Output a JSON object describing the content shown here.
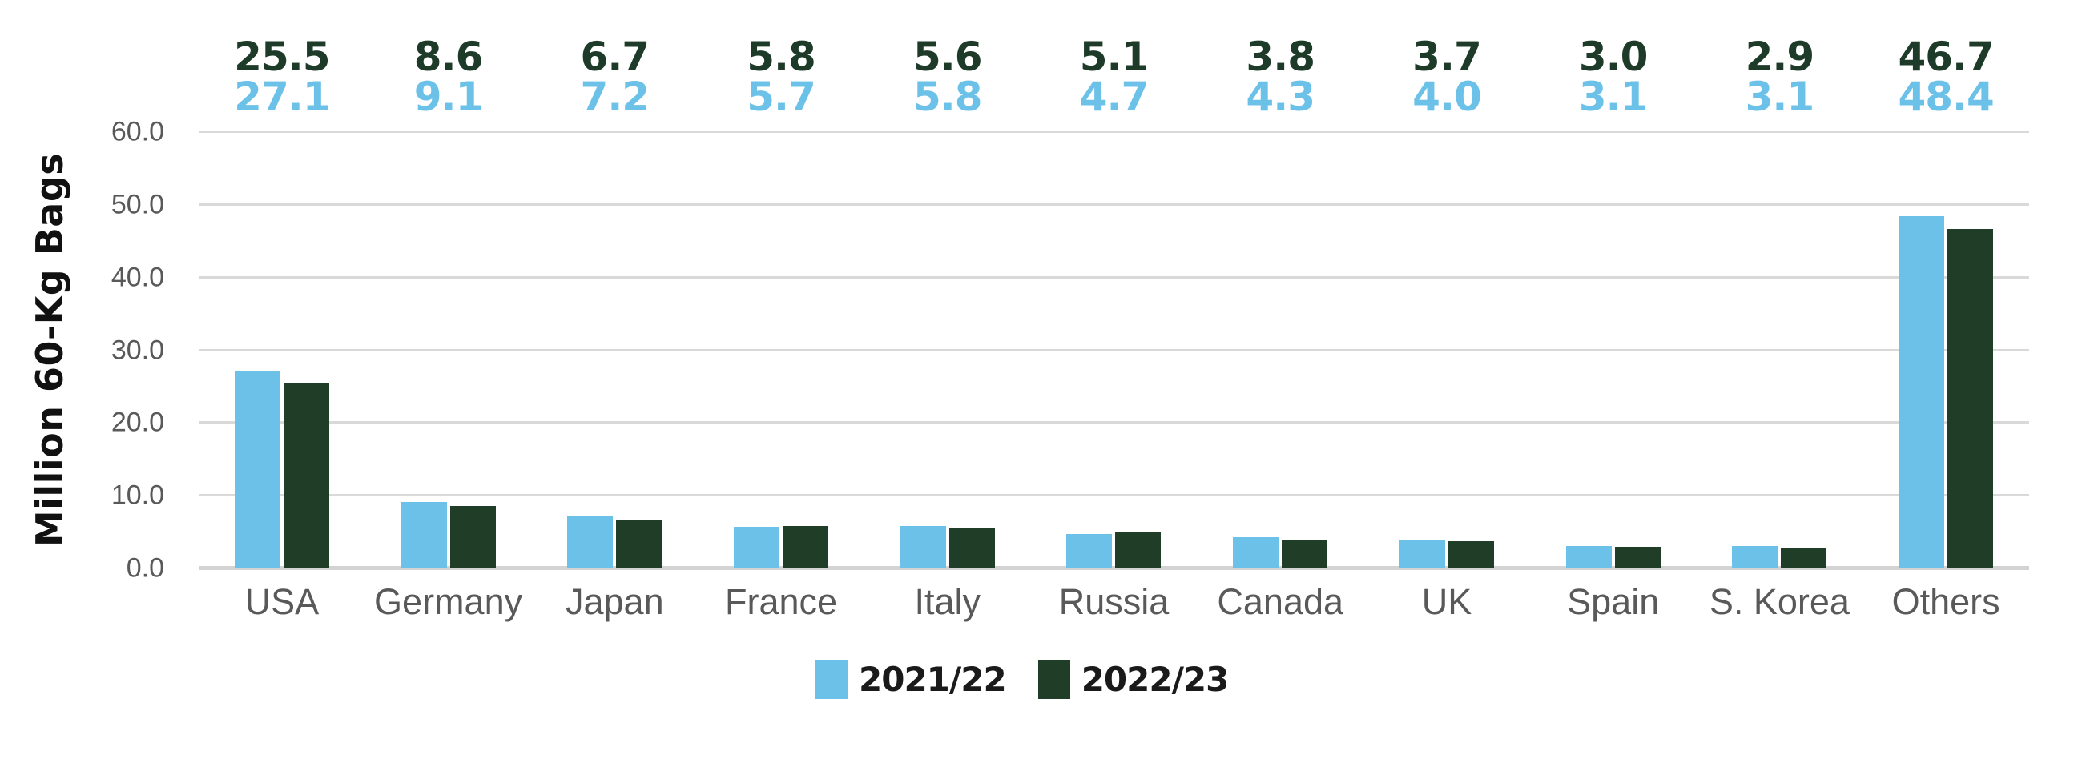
{
  "chart_data": {
    "type": "bar",
    "categories": [
      "USA",
      "Germany",
      "Japan",
      "France",
      "Italy",
      "Russia",
      "Canada",
      "UK",
      "Spain",
      "S. Korea",
      "Others"
    ],
    "series": [
      {
        "name": "2021/22",
        "color": "#6CC1E8",
        "values": [
          27.1,
          9.1,
          7.2,
          5.7,
          5.8,
          4.7,
          4.3,
          4.0,
          3.1,
          3.1,
          48.4
        ]
      },
      {
        "name": "2022/23",
        "color": "#203D28",
        "values": [
          25.5,
          8.6,
          6.7,
          5.8,
          5.6,
          5.1,
          3.8,
          3.7,
          3.0,
          2.9,
          46.7
        ]
      }
    ],
    "value_labels": {
      "top_row_series": "2022/23",
      "bottom_row_series": "2021/22",
      "top_row_color": "#1E3B2A",
      "bottom_row_color": "#6CC1E8",
      "decimals": 1
    },
    "title": "",
    "xlabel": "",
    "ylabel": "Million 60-Kg Bags",
    "ylim": [
      0,
      60
    ],
    "ytick_step": 10,
    "ytick_labels": [
      "0.0",
      "10.0",
      "20.0",
      "30.0",
      "40.0",
      "50.0",
      "60.0"
    ],
    "grid": true,
    "legend_position": "bottom-center"
  },
  "style": {
    "background": "#FFFFFF",
    "grid_color": "#D9D9D9",
    "axis_line_color": "#D3D3D3",
    "tick_label_color": "#595959",
    "category_label_color": "#595959",
    "axis_title_color": "#111111",
    "legend_text_color": "#1A1A1A"
  }
}
